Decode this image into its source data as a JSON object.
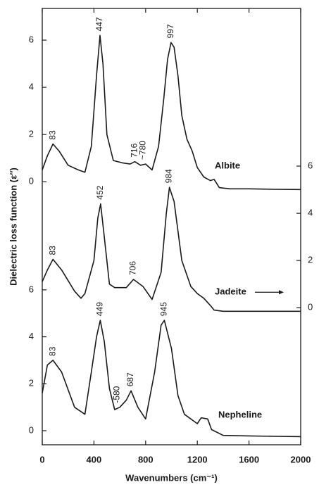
{
  "chart_data": [
    {
      "type": "line",
      "ylabel": "Dielectric loss function (ε″)",
      "xlim": [
        0,
        2000
      ],
      "ylim": [
        -0.5,
        7
      ],
      "yticks": [
        0,
        2,
        4,
        6
      ],
      "y_axis": "left",
      "x": [
        0,
        40,
        83,
        130,
        200,
        280,
        330,
        380,
        420,
        447,
        470,
        500,
        550,
        620,
        680,
        716,
        760,
        800,
        850,
        900,
        940,
        970,
        997,
        1020,
        1050,
        1080,
        1120,
        1160,
        1200,
        1250,
        1300,
        1330,
        1370,
        1450,
        1600,
        1800,
        2000
      ],
      "series": [
        {
          "name": "Albite",
          "color": "#1a1a1a",
          "values": [
            0.5,
            1.1,
            1.6,
            1.3,
            0.7,
            0.5,
            0.4,
            1.5,
            4.5,
            6.2,
            5.0,
            2.0,
            0.9,
            0.8,
            0.75,
            0.85,
            0.7,
            0.75,
            0.5,
            1.5,
            3.5,
            5.2,
            5.9,
            5.7,
            4.5,
            2.8,
            1.8,
            1.3,
            0.6,
            0.2,
            0.05,
            0.1,
            -0.25,
            -0.3,
            -0.3,
            -0.32,
            -0.33
          ]
        }
      ],
      "annotations": [
        {
          "text": "83",
          "x": 83,
          "y": 1.6
        },
        {
          "text": "447",
          "x": 447,
          "y": 6.2
        },
        {
          "text": "716",
          "x": 716,
          "y": 0.85
        },
        {
          "text": "~780",
          "x": 780,
          "y": 0.75
        },
        {
          "text": "997",
          "x": 997,
          "y": 5.9
        }
      ]
    },
    {
      "type": "line",
      "xlim": [
        0,
        2000
      ],
      "ylim": [
        -0.5,
        7
      ],
      "yticks": [
        0,
        2,
        4,
        6
      ],
      "y_axis": "right",
      "x": [
        0,
        40,
        83,
        150,
        250,
        300,
        330,
        400,
        430,
        452,
        480,
        520,
        560,
        650,
        706,
        780,
        850,
        920,
        960,
        984,
        1020,
        1080,
        1150,
        1200,
        1250,
        1300,
        1330,
        1400,
        1600,
        1800,
        2000
      ],
      "series": [
        {
          "name": "Jadeite",
          "color": "#1a1a1a",
          "values": [
            1.1,
            1.6,
            2.05,
            1.6,
            0.7,
            0.4,
            0.6,
            2.0,
            3.8,
            4.4,
            3.0,
            1.0,
            0.85,
            0.85,
            1.2,
            0.9,
            0.35,
            1.5,
            4.0,
            5.1,
            4.5,
            2.0,
            0.9,
            0.6,
            0.4,
            0.1,
            -0.1,
            -0.15,
            -0.15,
            -0.15,
            -0.15
          ]
        }
      ],
      "annotations": [
        {
          "text": "83",
          "x": 83,
          "y": 2.05
        },
        {
          "text": "452",
          "x": 452,
          "y": 4.4
        },
        {
          "text": "706",
          "x": 706,
          "y": 1.2
        },
        {
          "text": "984",
          "x": 984,
          "y": 5.1
        }
      ]
    },
    {
      "type": "line",
      "xlabel": "Wavenumbers (cm⁻¹)",
      "xlim": [
        0,
        2000
      ],
      "xticks": [
        0,
        400,
        800,
        1200,
        1600,
        2000
      ],
      "ylim": [
        -0.5,
        7
      ],
      "yticks": [
        0,
        2,
        4,
        6
      ],
      "y_axis": "left",
      "x": [
        0,
        40,
        83,
        150,
        250,
        330,
        380,
        420,
        449,
        480,
        520,
        560,
        600,
        650,
        687,
        740,
        800,
        870,
        920,
        945,
        1000,
        1050,
        1100,
        1200,
        1230,
        1280,
        1310,
        1400,
        1600,
        1800,
        2000
      ],
      "series": [
        {
          "name": "Nepheline",
          "color": "#1a1a1a",
          "values": [
            1.6,
            2.8,
            3.0,
            2.5,
            1.0,
            0.7,
            2.5,
            4.0,
            4.7,
            3.8,
            1.8,
            0.9,
            1.0,
            1.3,
            1.7,
            1.0,
            0.5,
            2.5,
            4.5,
            4.7,
            3.5,
            1.5,
            0.7,
            0.3,
            0.55,
            0.5,
            0.05,
            -0.2,
            -0.22,
            -0.24,
            -0.25
          ]
        }
      ],
      "annotations": [
        {
          "text": "83",
          "x": 83,
          "y": 3.0
        },
        {
          "text": "449",
          "x": 449,
          "y": 4.7
        },
        {
          "text": "-580",
          "x": 580,
          "y": 1.0
        },
        {
          "text": "687",
          "x": 687,
          "y": 1.7
        },
        {
          "text": "945",
          "x": 945,
          "y": 4.7
        }
      ]
    }
  ]
}
